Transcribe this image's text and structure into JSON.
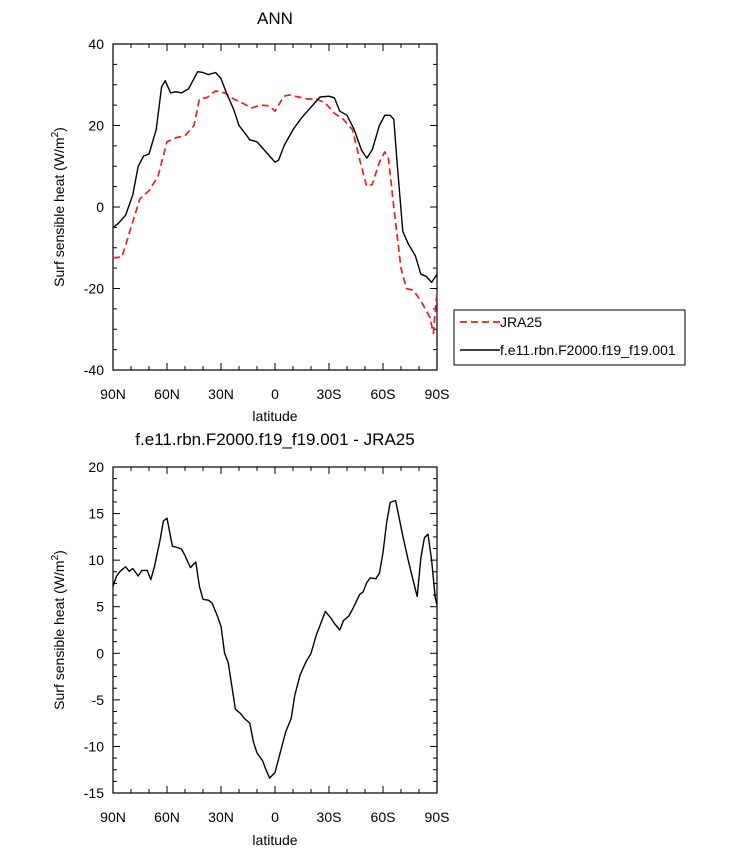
{
  "chart_data": [
    {
      "type": "line",
      "title": "ANN",
      "xlabel": "latitude",
      "ylabel": "Surf sensible heat (W/m",
      "ylabel_sup": "2",
      "ylabel_end": ")",
      "xlim": [
        90,
        -90
      ],
      "ylim": [
        -40,
        40
      ],
      "xticks": [
        90,
        60,
        30,
        0,
        -30,
        -60,
        -90
      ],
      "xtick_labels": [
        "90N",
        "60N",
        "30N",
        "0",
        "30S",
        "60S",
        "90S"
      ],
      "yticks": [
        -40,
        -20,
        0,
        20,
        40
      ],
      "ytick_labels": [
        "-40",
        "-20",
        "0",
        "20",
        "40"
      ],
      "legend_position": "outside-right",
      "series": [
        {
          "name": "JRA25",
          "color": "#e8201e",
          "dash": "dashed",
          "points": [
            [
              90,
              -12.5
            ],
            [
              85,
              -12.3
            ],
            [
              80,
              -5
            ],
            [
              75,
              2
            ],
            [
              70,
              4
            ],
            [
              65,
              7.5
            ],
            [
              60,
              16
            ],
            [
              55,
              17
            ],
            [
              50,
              17.5
            ],
            [
              45,
              20
            ],
            [
              42,
              26.5
            ],
            [
              38,
              26.8
            ],
            [
              33,
              28.5
            ],
            [
              28,
              28
            ],
            [
              23,
              26.5
            ],
            [
              18,
              25.5
            ],
            [
              13,
              24.3
            ],
            [
              8,
              25
            ],
            [
              3,
              24.8
            ],
            [
              0,
              23.5
            ],
            [
              -5,
              27.2
            ],
            [
              -8,
              27.5
            ],
            [
              -13,
              27
            ],
            [
              -18,
              26.5
            ],
            [
              -23,
              26.5
            ],
            [
              -28,
              25.5
            ],
            [
              -33,
              23
            ],
            [
              -38,
              21.5
            ],
            [
              -43,
              19
            ],
            [
              -48,
              10
            ],
            [
              -51,
              5
            ],
            [
              -54,
              5.5
            ],
            [
              -58,
              11
            ],
            [
              -61,
              13.5
            ],
            [
              -63,
              12
            ],
            [
              -66,
              0
            ],
            [
              -70,
              -15
            ],
            [
              -73,
              -20
            ],
            [
              -77,
              -20.5
            ],
            [
              -81,
              -23
            ],
            [
              -86,
              -27
            ],
            [
              -88,
              -31
            ],
            [
              -90,
              -20.5
            ]
          ]
        },
        {
          "name": "f.e11.rbn.F2000.f19_f19.001",
          "color": "#000000",
          "dash": "solid",
          "points": [
            [
              90,
              -5
            ],
            [
              87,
              -4
            ],
            [
              83,
              -2
            ],
            [
              79,
              3
            ],
            [
              76,
              10
            ],
            [
              73,
              12.5
            ],
            [
              70,
              13
            ],
            [
              66,
              19
            ],
            [
              63,
              29.5
            ],
            [
              61,
              31
            ],
            [
              58,
              28
            ],
            [
              55,
              28.3
            ],
            [
              52,
              28
            ],
            [
              48,
              29
            ],
            [
              45,
              31.5
            ],
            [
              43,
              33.2
            ],
            [
              40,
              33
            ],
            [
              37,
              32.5
            ],
            [
              33,
              33
            ],
            [
              30,
              31.5
            ],
            [
              27,
              28
            ],
            [
              23,
              24
            ],
            [
              20,
              20
            ],
            [
              17,
              18.3
            ],
            [
              14,
              16.5
            ],
            [
              10,
              16
            ],
            [
              5,
              13.5
            ],
            [
              2,
              12
            ],
            [
              0,
              11
            ],
            [
              -2,
              11.5
            ],
            [
              -5,
              15
            ],
            [
              -10,
              19
            ],
            [
              -15,
              22
            ],
            [
              -20,
              24.5
            ],
            [
              -25,
              27
            ],
            [
              -30,
              27.2
            ],
            [
              -33,
              26.8
            ],
            [
              -36,
              23.5
            ],
            [
              -40,
              22.5
            ],
            [
              -44,
              19
            ],
            [
              -48,
              14
            ],
            [
              -51,
              12
            ],
            [
              -54,
              14
            ],
            [
              -58,
              20
            ],
            [
              -61,
              22.5
            ],
            [
              -64,
              22.5
            ],
            [
              -66,
              21.5
            ],
            [
              -68,
              10
            ],
            [
              -71,
              -6
            ],
            [
              -74,
              -9
            ],
            [
              -78,
              -12
            ],
            [
              -81,
              -16.5
            ],
            [
              -84,
              -17
            ],
            [
              -87,
              -18.5
            ],
            [
              -90,
              -16.5
            ]
          ]
        }
      ]
    },
    {
      "type": "line",
      "title": "f.e11.rbn.F2000.f19_f19.001 - JRA25",
      "xlabel": "latitude",
      "ylabel": "Surf sensible heat (W/m",
      "ylabel_sup": "2",
      "ylabel_end": ")",
      "xlim": [
        90,
        -90
      ],
      "ylim": [
        -15,
        20
      ],
      "xticks": [
        90,
        60,
        30,
        0,
        -30,
        -60,
        -90
      ],
      "xtick_labels": [
        "90N",
        "60N",
        "30N",
        "0",
        "30S",
        "60S",
        "90S"
      ],
      "yticks": [
        -15,
        -10,
        -5,
        0,
        5,
        10,
        15,
        20
      ],
      "ytick_labels": [
        "-15",
        "-10",
        "-5",
        "0",
        "5",
        "10",
        "15",
        "20"
      ],
      "series": [
        {
          "color": "#000000",
          "dash": "solid",
          "points": [
            [
              90,
              7.2
            ],
            [
              88,
              8.3
            ],
            [
              86,
              8.8
            ],
            [
              83,
              9.3
            ],
            [
              81,
              8.8
            ],
            [
              79,
              9.1
            ],
            [
              76,
              8.3
            ],
            [
              74,
              8.9
            ],
            [
              71,
              8.9
            ],
            [
              69,
              7.9
            ],
            [
              67,
              9.3
            ],
            [
              64,
              12
            ],
            [
              62,
              14.2
            ],
            [
              60,
              14.5
            ],
            [
              57,
              11.5
            ],
            [
              55,
              11.4
            ],
            [
              52,
              11.2
            ],
            [
              50,
              10.5
            ],
            [
              47,
              9.2
            ],
            [
              44,
              9.8
            ],
            [
              42,
              7.2
            ],
            [
              40,
              5.8
            ],
            [
              37,
              5.7
            ],
            [
              35,
              5.4
            ],
            [
              32,
              4
            ],
            [
              30,
              2.9
            ],
            [
              28,
              0
            ],
            [
              26,
              -1
            ],
            [
              24,
              -3.5
            ],
            [
              22,
              -6
            ],
            [
              19,
              -6.5
            ],
            [
              17,
              -7
            ],
            [
              14,
              -7.5
            ],
            [
              12,
              -9.5
            ],
            [
              10,
              -10.7
            ],
            [
              7,
              -11.5
            ],
            [
              5,
              -12.5
            ],
            [
              3,
              -13.4
            ],
            [
              0,
              -12.8
            ],
            [
              -3,
              -10.6
            ],
            [
              -6,
              -8.4
            ],
            [
              -9,
              -7
            ],
            [
              -11,
              -4.5
            ],
            [
              -14,
              -2.3
            ],
            [
              -17,
              -1
            ],
            [
              -20,
              0
            ],
            [
              -23,
              2
            ],
            [
              -26,
              3.5
            ],
            [
              -28,
              4.5
            ],
            [
              -31,
              3.8
            ],
            [
              -33,
              3.2
            ],
            [
              -36,
              2.5
            ],
            [
              -38,
              3.5
            ],
            [
              -41,
              4
            ],
            [
              -43,
              4.7
            ],
            [
              -45,
              5.5
            ],
            [
              -47,
              6.3
            ],
            [
              -49,
              6.6
            ],
            [
              -51,
              7.6
            ],
            [
              -53,
              8.1
            ],
            [
              -56,
              8
            ],
            [
              -58,
              8.6
            ],
            [
              -60,
              10.8
            ],
            [
              -62,
              14
            ],
            [
              -64,
              16.2
            ],
            [
              -67,
              16.4
            ],
            [
              -69,
              14.5
            ],
            [
              -71,
              12.6
            ],
            [
              -74,
              10
            ],
            [
              -76,
              8.4
            ],
            [
              -79,
              6.1
            ],
            [
              -81,
              10.2
            ],
            [
              -83,
              12.4
            ],
            [
              -85,
              12.8
            ],
            [
              -87,
              10
            ],
            [
              -89,
              6
            ],
            [
              -90,
              5.2
            ]
          ]
        }
      ]
    }
  ]
}
